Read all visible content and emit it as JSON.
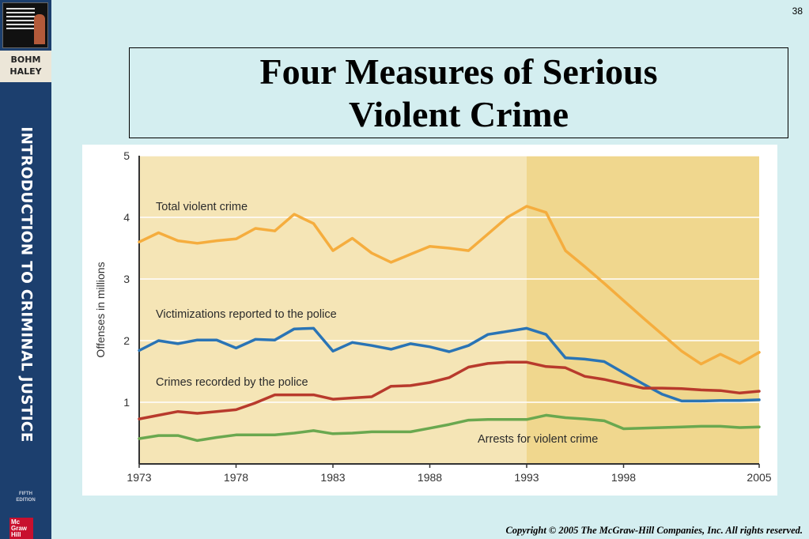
{
  "slide": {
    "page_number": "38",
    "title": "Four Measures of Serious Violent Crime",
    "copyright": "Copyright © 2005 The McGraw-Hill Companies, Inc. All rights reserved."
  },
  "sidebar": {
    "authors_line1": "BOHM",
    "authors_line2": "HALEY",
    "book_title": "INTRODUCTION TO CRIMINAL JUSTICE",
    "edition_line1": "FIFTH",
    "edition_line2": "EDITION",
    "publisher_logo": "Mc Graw Hill"
  },
  "colors": {
    "plot_bg_left": "#f5e5b6",
    "plot_bg_right": "#f0d78e",
    "total": "#f5ad3e",
    "victimizations": "#2a74b5",
    "recorded": "#b83a2c",
    "arrests": "#6aa84f"
  },
  "chart_data": {
    "type": "line",
    "title": "",
    "xlabel": "",
    "ylabel": "Offenses in millions",
    "xlim": [
      1973,
      2005
    ],
    "ylim": [
      0,
      5
    ],
    "x_ticks": [
      "1973",
      "1978",
      "1983",
      "1988",
      "1993",
      "1998",
      "2005"
    ],
    "y_ticks": [
      "1",
      "2",
      "3",
      "4",
      "5"
    ],
    "grid": "horizontal",
    "shaded_region": [
      1993,
      2005
    ],
    "x": [
      1973,
      1974,
      1975,
      1976,
      1977,
      1978,
      1979,
      1980,
      1981,
      1982,
      1983,
      1984,
      1985,
      1986,
      1987,
      1988,
      1989,
      1990,
      1991,
      1992,
      1993,
      1994,
      1995,
      1996,
      1997,
      1998,
      1999,
      2000,
      2001,
      2002,
      2003,
      2004,
      2005
    ],
    "series": [
      {
        "name": "Total violent crime",
        "color": "#f5ad3e",
        "values": [
          3.6,
          3.75,
          3.62,
          3.58,
          3.62,
          3.65,
          3.82,
          3.78,
          4.05,
          3.9,
          3.46,
          3.66,
          3.42,
          3.27,
          3.4,
          3.53,
          3.5,
          3.46,
          3.73,
          4.0,
          4.18,
          4.08,
          3.46,
          3.2,
          2.93,
          2.65,
          2.37,
          2.1,
          1.83,
          1.62,
          1.78,
          1.63,
          1.81
        ]
      },
      {
        "name": "Victimizations reported to the police",
        "color": "#2a74b5",
        "values": [
          1.84,
          2.0,
          1.95,
          2.01,
          2.01,
          1.88,
          2.02,
          2.01,
          2.19,
          2.2,
          1.83,
          1.97,
          1.92,
          1.86,
          1.95,
          1.9,
          1.82,
          1.92,
          2.1,
          2.15,
          2.2,
          2.1,
          1.72,
          1.7,
          1.66,
          1.48,
          1.3,
          1.13,
          1.02,
          1.02,
          1.03,
          1.03,
          1.04
        ]
      },
      {
        "name": "Crimes recorded by the police",
        "color": "#b83a2c",
        "values": [
          0.73,
          0.79,
          0.85,
          0.82,
          0.85,
          0.88,
          0.99,
          1.12,
          1.12,
          1.12,
          1.05,
          1.07,
          1.09,
          1.26,
          1.27,
          1.32,
          1.4,
          1.57,
          1.63,
          1.65,
          1.65,
          1.58,
          1.56,
          1.42,
          1.37,
          1.3,
          1.23,
          1.23,
          1.22,
          1.2,
          1.19,
          1.15,
          1.18
        ]
      },
      {
        "name": "Arrests for violent crime",
        "color": "#6aa84f",
        "values": [
          0.41,
          0.46,
          0.46,
          0.38,
          0.43,
          0.47,
          0.47,
          0.47,
          0.5,
          0.54,
          0.49,
          0.5,
          0.52,
          0.52,
          0.52,
          0.58,
          0.64,
          0.71,
          0.72,
          0.72,
          0.72,
          0.79,
          0.75,
          0.73,
          0.7,
          0.57,
          0.58,
          0.59,
          0.6,
          0.61,
          0.61,
          0.59,
          0.6
        ]
      }
    ]
  }
}
